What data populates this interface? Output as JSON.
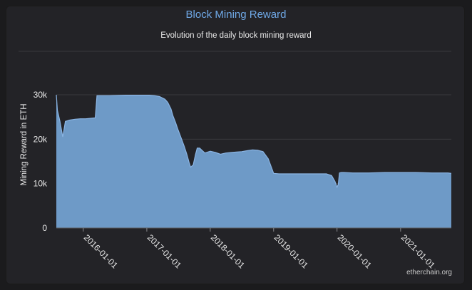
{
  "colors": {
    "background": "#232327",
    "accent": "#6fa8e6",
    "fill": "#6e9ac7",
    "stroke": "#8ab4e3",
    "grid": "#3a3a3e",
    "text": "#e8e8e8"
  },
  "header": {
    "title": "Block Mining Reward",
    "subtitle": "Evolution of the daily block mining reward"
  },
  "credit": "etherchain.org",
  "chart_data": {
    "type": "area",
    "title": "Block Mining Reward",
    "subtitle": "Evolution of the daily block mining reward",
    "xlabel": "",
    "ylabel": "Mining Reward in ETH",
    "ylim": [
      0,
      30000
    ],
    "yticks": [
      0,
      10000,
      20000,
      30000
    ],
    "ytick_labels": [
      "0",
      "10k",
      "20k",
      "30k"
    ],
    "xlim": [
      "2015-07-30",
      "2021-10-20"
    ],
    "xticks": [
      "2016-01-01",
      "2017-01-01",
      "2018-01-01",
      "2019-01-01",
      "2020-01-01",
      "2021-01-01"
    ],
    "grid": true,
    "legend": "none",
    "x": [
      "2015-07-30",
      "2015-08-05",
      "2015-08-20",
      "2015-09-05",
      "2015-09-20",
      "2015-10-15",
      "2015-11-15",
      "2015-12-15",
      "2016-01-15",
      "2016-02-15",
      "2016-03-10",
      "2016-03-20",
      "2016-06-01",
      "2016-09-01",
      "2016-12-01",
      "2017-01-15",
      "2017-02-15",
      "2017-03-15",
      "2017-04-15",
      "2017-05-01",
      "2017-05-20",
      "2017-06-01",
      "2017-06-15",
      "2017-07-01",
      "2017-07-20",
      "2017-08-05",
      "2017-08-20",
      "2017-09-01",
      "2017-09-10",
      "2017-09-25",
      "2017-10-08",
      "2017-10-18",
      "2017-11-01",
      "2017-12-01",
      "2018-01-01",
      "2018-02-01",
      "2018-03-01",
      "2018-04-01",
      "2018-05-01",
      "2018-06-01",
      "2018-07-01",
      "2018-08-01",
      "2018-09-01",
      "2018-10-01",
      "2018-11-01",
      "2018-12-01",
      "2019-01-01",
      "2019-02-01",
      "2019-03-05",
      "2019-06-01",
      "2019-09-01",
      "2019-11-01",
      "2019-12-01",
      "2019-12-20",
      "2020-01-01",
      "2020-01-08",
      "2020-01-15",
      "2020-01-25",
      "2020-02-10",
      "2020-04-01",
      "2020-07-01",
      "2020-10-01",
      "2021-01-01",
      "2021-04-01",
      "2021-07-01",
      "2021-10-01",
      "2021-10-20"
    ],
    "y": [
      30000,
      26500,
      24000,
      20500,
      24000,
      24300,
      24500,
      24600,
      24600,
      24700,
      24800,
      29800,
      29800,
      29900,
      29900,
      29900,
      29800,
      29600,
      29000,
      28300,
      26800,
      25200,
      23800,
      22000,
      20000,
      18300,
      16500,
      14800,
      13700,
      14200,
      16500,
      18000,
      18000,
      16900,
      17300,
      17000,
      16600,
      16900,
      17000,
      17100,
      17200,
      17400,
      17600,
      17500,
      17200,
      15600,
      12300,
      12200,
      12200,
      12200,
      12200,
      12200,
      11800,
      10500,
      9200,
      9800,
      12400,
      12500,
      12500,
      12400,
      12400,
      12500,
      12500,
      12500,
      12400,
      12400,
      12300
    ]
  }
}
